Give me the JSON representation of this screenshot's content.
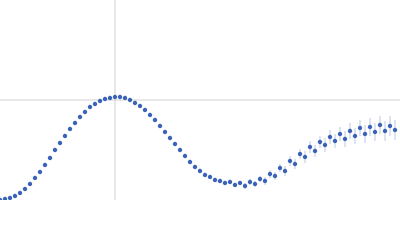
{
  "chart_data": {
    "type": "scatter",
    "x": [
      0,
      5,
      10,
      15,
      20,
      25,
      30,
      35,
      40,
      45,
      50,
      55,
      60,
      65,
      70,
      75,
      80,
      85,
      90,
      95,
      100,
      105,
      110,
      115,
      120,
      125,
      130,
      135,
      140,
      145,
      150,
      155,
      160,
      165,
      170,
      175,
      180,
      185,
      190,
      195,
      200,
      205,
      210,
      215,
      220,
      225,
      230,
      235,
      240,
      245,
      250,
      255,
      260,
      265,
      270,
      275,
      280,
      285,
      290,
      295,
      300,
      305,
      310,
      315,
      320,
      325,
      330,
      335,
      340,
      345,
      350,
      355,
      360,
      365,
      370,
      375,
      380,
      385,
      390,
      395
    ],
    "series": [
      {
        "color": "#3a62b8",
        "values": [
          0,
          1,
          2,
          4,
          7,
          11,
          16,
          22,
          28,
          35,
          42,
          50,
          57,
          64,
          71,
          77,
          83,
          88,
          93,
          96,
          99,
          101,
          102,
          103,
          103,
          102,
          100,
          97,
          94,
          90,
          85,
          80,
          74,
          68,
          62,
          56,
          50,
          44,
          38,
          33,
          29,
          25,
          23,
          20,
          19,
          17,
          18,
          15,
          17,
          14,
          18,
          16,
          21,
          19,
          26,
          24,
          32,
          29,
          39,
          36,
          46,
          43,
          53,
          49,
          58,
          55,
          63,
          59,
          66,
          61,
          69,
          64,
          72,
          66,
          73,
          68,
          75,
          69,
          74,
          70
        ],
        "errors": [
          0.5,
          0.5,
          0.5,
          0.5,
          0.5,
          0.5,
          0.5,
          0.5,
          0.5,
          0.5,
          0.5,
          0.5,
          0.5,
          0.5,
          0.5,
          0.5,
          0.5,
          0.5,
          0.5,
          0.5,
          0.5,
          0.5,
          0.5,
          0.5,
          0.5,
          0.5,
          0.5,
          0.5,
          0.5,
          0.5,
          0.5,
          0.5,
          0.5,
          0.5,
          0.5,
          0.5,
          0.5,
          0.5,
          0.5,
          0.5,
          1,
          1,
          1,
          1,
          2,
          2,
          2,
          2,
          2,
          3,
          3,
          3,
          3,
          4,
          4,
          4,
          4,
          5,
          5,
          5,
          5,
          6,
          6,
          6,
          6,
          7,
          7,
          7,
          7,
          8,
          8,
          8,
          8,
          9,
          9,
          9,
          9,
          10,
          10,
          10
        ]
      }
    ],
    "xlim": [
      0,
      400
    ],
    "ylim": [
      0,
      200
    ],
    "xticks": [
      115
    ],
    "yticks": [
      100
    ],
    "grid": true
  }
}
